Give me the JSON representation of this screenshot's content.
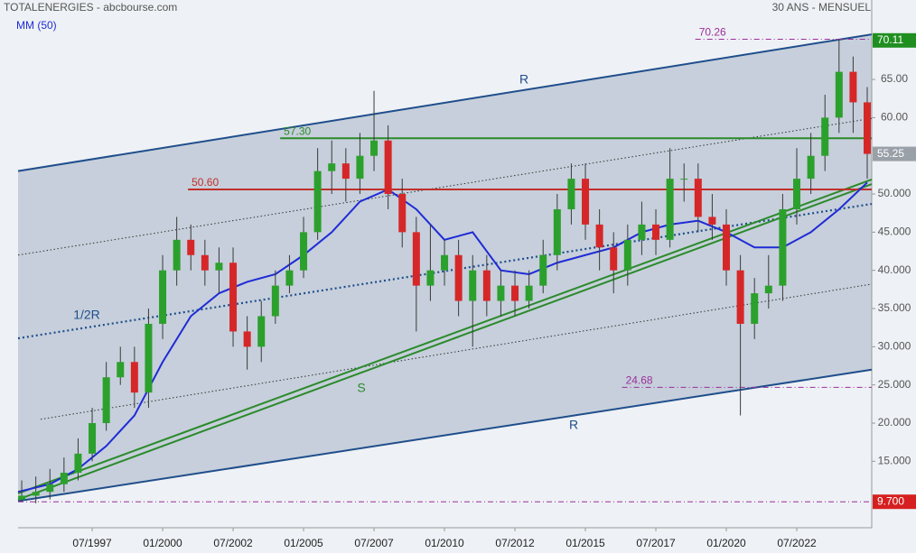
{
  "chart_data": {
    "type": "candlestick",
    "title": "TOTALENERGIES - abcbourse.com",
    "subtitle": "30 ANS - MENSUEL",
    "xlim": [
      1994.87,
      2025.16
    ],
    "ylim": [
      6.3,
      75.4
    ],
    "xticks": [
      {
        "value": 1997.5,
        "label": "07/1997"
      },
      {
        "value": 2000,
        "label": "01/2000"
      },
      {
        "value": 2002.5,
        "label": "07/2002"
      },
      {
        "value": 2005,
        "label": "01/2005"
      },
      {
        "value": 2007.5,
        "label": "07/2007"
      },
      {
        "value": 2010,
        "label": "01/2010"
      },
      {
        "value": 2012.5,
        "label": "07/2012"
      },
      {
        "value": 2015,
        "label": "01/2015"
      },
      {
        "value": 2017.5,
        "label": "07/2017"
      },
      {
        "value": 2020,
        "label": "01/2020"
      },
      {
        "value": 2022.5,
        "label": "07/2022"
      }
    ],
    "yticks": [
      {
        "value": 15,
        "label": "15.000"
      },
      {
        "value": 20,
        "label": "20.000"
      },
      {
        "value": 25,
        "label": "25.000"
      },
      {
        "value": 30,
        "label": "30.000"
      },
      {
        "value": 35,
        "label": "35.000"
      },
      {
        "value": 40,
        "label": "40.000"
      },
      {
        "value": 45,
        "label": "45.000"
      },
      {
        "value": 50,
        "label": "50.000"
      },
      {
        "value": 60,
        "label": "60.00"
      },
      {
        "value": 65,
        "label": "65.00"
      }
    ],
    "up_color": "#2ca02c",
    "down_color": "#d62728",
    "x": [
      1995,
      1995.5,
      1996,
      1996.5,
      1997,
      1997.5,
      1998,
      1998.5,
      1999,
      1999.5,
      2000,
      2000.5,
      2001,
      2001.5,
      2002,
      2002.5,
      2003,
      2003.5,
      2004,
      2004.5,
      2005,
      2005.5,
      2006,
      2006.5,
      2007,
      2007.5,
      2008,
      2008.5,
      2009,
      2009.5,
      2010,
      2010.5,
      2011,
      2011.5,
      2012,
      2012.5,
      2013,
      2013.5,
      2014,
      2014.5,
      2015,
      2015.5,
      2016,
      2016.5,
      2017,
      2017.5,
      2018,
      2018.5,
      2019,
      2019.5,
      2020,
      2020.5,
      2021,
      2021.5,
      2022,
      2022.5,
      2023,
      2023.5,
      2024,
      2024.5,
      2025
    ],
    "open": [
      10,
      10.5,
      11,
      12,
      13.5,
      16,
      20,
      26,
      28,
      24,
      33,
      40,
      44,
      42,
      40,
      41,
      32,
      30,
      34,
      38,
      40,
      45,
      53,
      54,
      52,
      55,
      57,
      50,
      45,
      38,
      40,
      42,
      36,
      40,
      36,
      38,
      36,
      38,
      42,
      48,
      52,
      46,
      43,
      40,
      44,
      46,
      44,
      52,
      52,
      47,
      46,
      40,
      33,
      37,
      38,
      48,
      52,
      55,
      60,
      66,
      62
    ],
    "high": [
      12.5,
      13,
      14,
      15.5,
      18,
      22,
      28,
      30,
      30,
      35,
      42,
      47,
      46,
      44,
      43,
      43,
      34,
      36,
      40,
      42,
      47,
      56,
      57,
      56,
      58,
      63.5,
      59,
      52,
      47,
      46,
      44,
      44,
      42,
      42,
      40,
      40,
      40,
      44,
      50,
      54,
      54,
      48,
      45,
      46,
      49,
      48,
      56,
      54,
      54,
      50,
      48,
      42,
      39,
      42,
      50,
      56,
      58,
      63,
      70.26,
      68,
      64
    ],
    "low": [
      9.7,
      9.5,
      10,
      11,
      12.5,
      15,
      19,
      25,
      22,
      22,
      31,
      38,
      40,
      38,
      37,
      30,
      27,
      28,
      33,
      37,
      39,
      44,
      50,
      49,
      50,
      53,
      48,
      43,
      32,
      36,
      38,
      34,
      30,
      34,
      34,
      34,
      35,
      37,
      40,
      46,
      44,
      40,
      37,
      38,
      42,
      42,
      43,
      49,
      45,
      44,
      38,
      21,
      31,
      35,
      36,
      46,
      50,
      53,
      58,
      58,
      52
    ],
    "close": [
      10.5,
      11,
      12,
      13.5,
      16,
      20,
      26,
      28,
      24,
      33,
      40,
      44,
      42,
      40,
      41,
      32,
      30,
      34,
      38,
      40,
      45,
      53,
      54,
      52,
      55,
      57,
      50,
      45,
      38,
      40,
      42,
      36,
      40,
      36,
      38,
      36,
      38,
      42,
      48,
      52,
      46,
      43,
      40,
      44,
      46,
      44,
      52,
      52,
      47,
      46,
      40,
      33,
      37,
      38,
      48,
      52,
      55,
      60,
      66,
      62,
      55.25
    ],
    "ma": {
      "name": "MM (50)",
      "color": "#1f2bd6",
      "x": [
        1994.87,
        1996,
        1997,
        1998,
        1999,
        2000,
        2001,
        2002,
        2003,
        2004,
        2005,
        2006,
        2007,
        2008,
        2009,
        2010,
        2011,
        2012,
        2013,
        2014,
        2015,
        2016,
        2017,
        2018,
        2019,
        2020,
        2021,
        2022,
        2023,
        2024,
        2025
      ],
      "values": [
        11,
        12,
        14,
        17,
        21,
        28,
        34,
        37,
        38.5,
        39.5,
        42,
        45,
        49,
        50.6,
        48,
        44,
        45,
        40,
        39.5,
        41,
        42,
        43,
        45,
        46,
        46.5,
        45,
        43,
        43,
        45,
        48,
        51.5
      ]
    },
    "trendlines": [
      {
        "x": [
          1994.87,
          2025.16
        ],
        "y": [
          53,
          70.9
        ],
        "color": "#1f4e8c",
        "style": "solid",
        "label": "R"
      },
      {
        "x": [
          1994.87,
          2025.16
        ],
        "y": [
          9.8,
          27
        ],
        "color": "#1f4e8c",
        "style": "solid",
        "label": "R"
      },
      {
        "x": [
          1994.87,
          2025.16
        ],
        "y": [
          31.1,
          48.7
        ],
        "color": "#1f4e8c",
        "style": "dotted",
        "label": "1/2R"
      },
      {
        "x": [
          1994.87,
          2025.16
        ],
        "y": [
          42,
          59.9
        ],
        "color": "#333333",
        "style": "fine"
      },
      {
        "x": [
          1995.67,
          2025.16
        ],
        "y": [
          20.5,
          38.2
        ],
        "color": "#333333",
        "style": "fine"
      },
      {
        "x": [
          1994.87,
          2025.16
        ],
        "y": [
          10,
          51.3
        ],
        "color": "#2b8a2b",
        "style": "solid",
        "label": "S"
      },
      {
        "x": [
          1994.87,
          2025.16
        ],
        "y": [
          10.8,
          51.9
        ],
        "color": "#2b8a2b",
        "style": "solid"
      }
    ],
    "levels": [
      {
        "value": 70.26,
        "from": 2018.9,
        "color": "#9b2f9b",
        "style": "dashdot"
      },
      {
        "value": 57.3,
        "label": "57.30",
        "from": 2004.17,
        "color": "#2b8a2b",
        "style": "solid"
      },
      {
        "value": 50.6,
        "label": "50.60",
        "from": 2000.9,
        "color": "#c0302a",
        "style": "solid"
      },
      {
        "value": 24.68,
        "from": 2016.3,
        "color": "#9b2f9b",
        "style": "dashdot"
      },
      {
        "value": 9.7,
        "from": 1994.87,
        "color": "#9b2f9b",
        "style": "dashdot",
        "unlabeled": true
      }
    ],
    "price_tags": [
      {
        "value": 70.11,
        "color": "#1f8f1f"
      },
      {
        "value": 55.25,
        "color": "#9aa0a8"
      },
      {
        "value": 9.7,
        "label": "9.700",
        "color": "#d62020"
      }
    ]
  }
}
